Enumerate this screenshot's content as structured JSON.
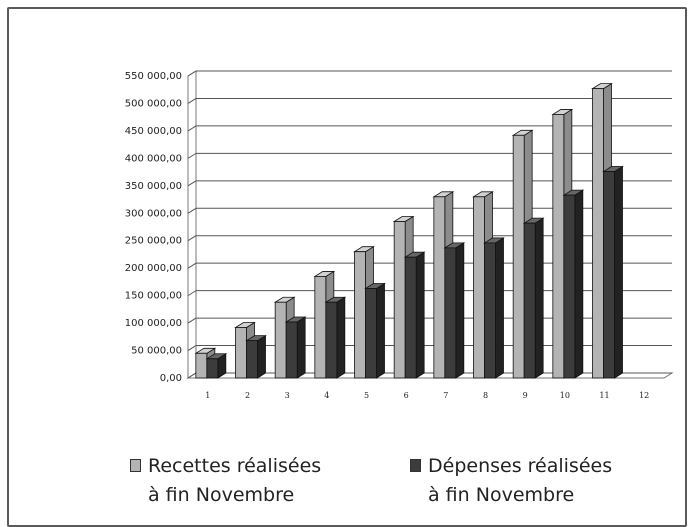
{
  "chart_data": {
    "type": "bar",
    "style": "3d-clustered-column",
    "categories": [
      "1",
      "2",
      "3",
      "4",
      "5",
      "6",
      "7",
      "8",
      "9",
      "10",
      "11",
      "12"
    ],
    "series": [
      {
        "name": "Recettes réalisées à fin Novembre",
        "name_lines": [
          "Recettes réalisées",
          "à fin Novembre"
        ],
        "color": "#b4b4b4",
        "values": [
          45000,
          92000,
          138000,
          185000,
          230000,
          285000,
          330000,
          330000,
          442000,
          480000,
          527000,
          null
        ]
      },
      {
        "name": "Dépenses réalisées à fin Novembre",
        "name_lines": [
          "Dépenses réalisées",
          "à fin Novembre"
        ],
        "color": "#3c3c3c",
        "values": [
          35000,
          68000,
          102000,
          138000,
          163000,
          220000,
          237000,
          246000,
          282000,
          333000,
          376000,
          null
        ]
      }
    ],
    "y_ticks": [
      "0,00",
      "50 000,00",
      "100 000,00",
      "150 000,00",
      "200 000,00",
      "250 000,00",
      "300 000,00",
      "350 000,00",
      "400 000,00",
      "450 000,00",
      "500 000,00",
      "550 000,00"
    ],
    "ylim": [
      0,
      550000
    ],
    "grid": true,
    "legend_position": "bottom",
    "title": "",
    "xlabel": "",
    "ylabel": ""
  }
}
